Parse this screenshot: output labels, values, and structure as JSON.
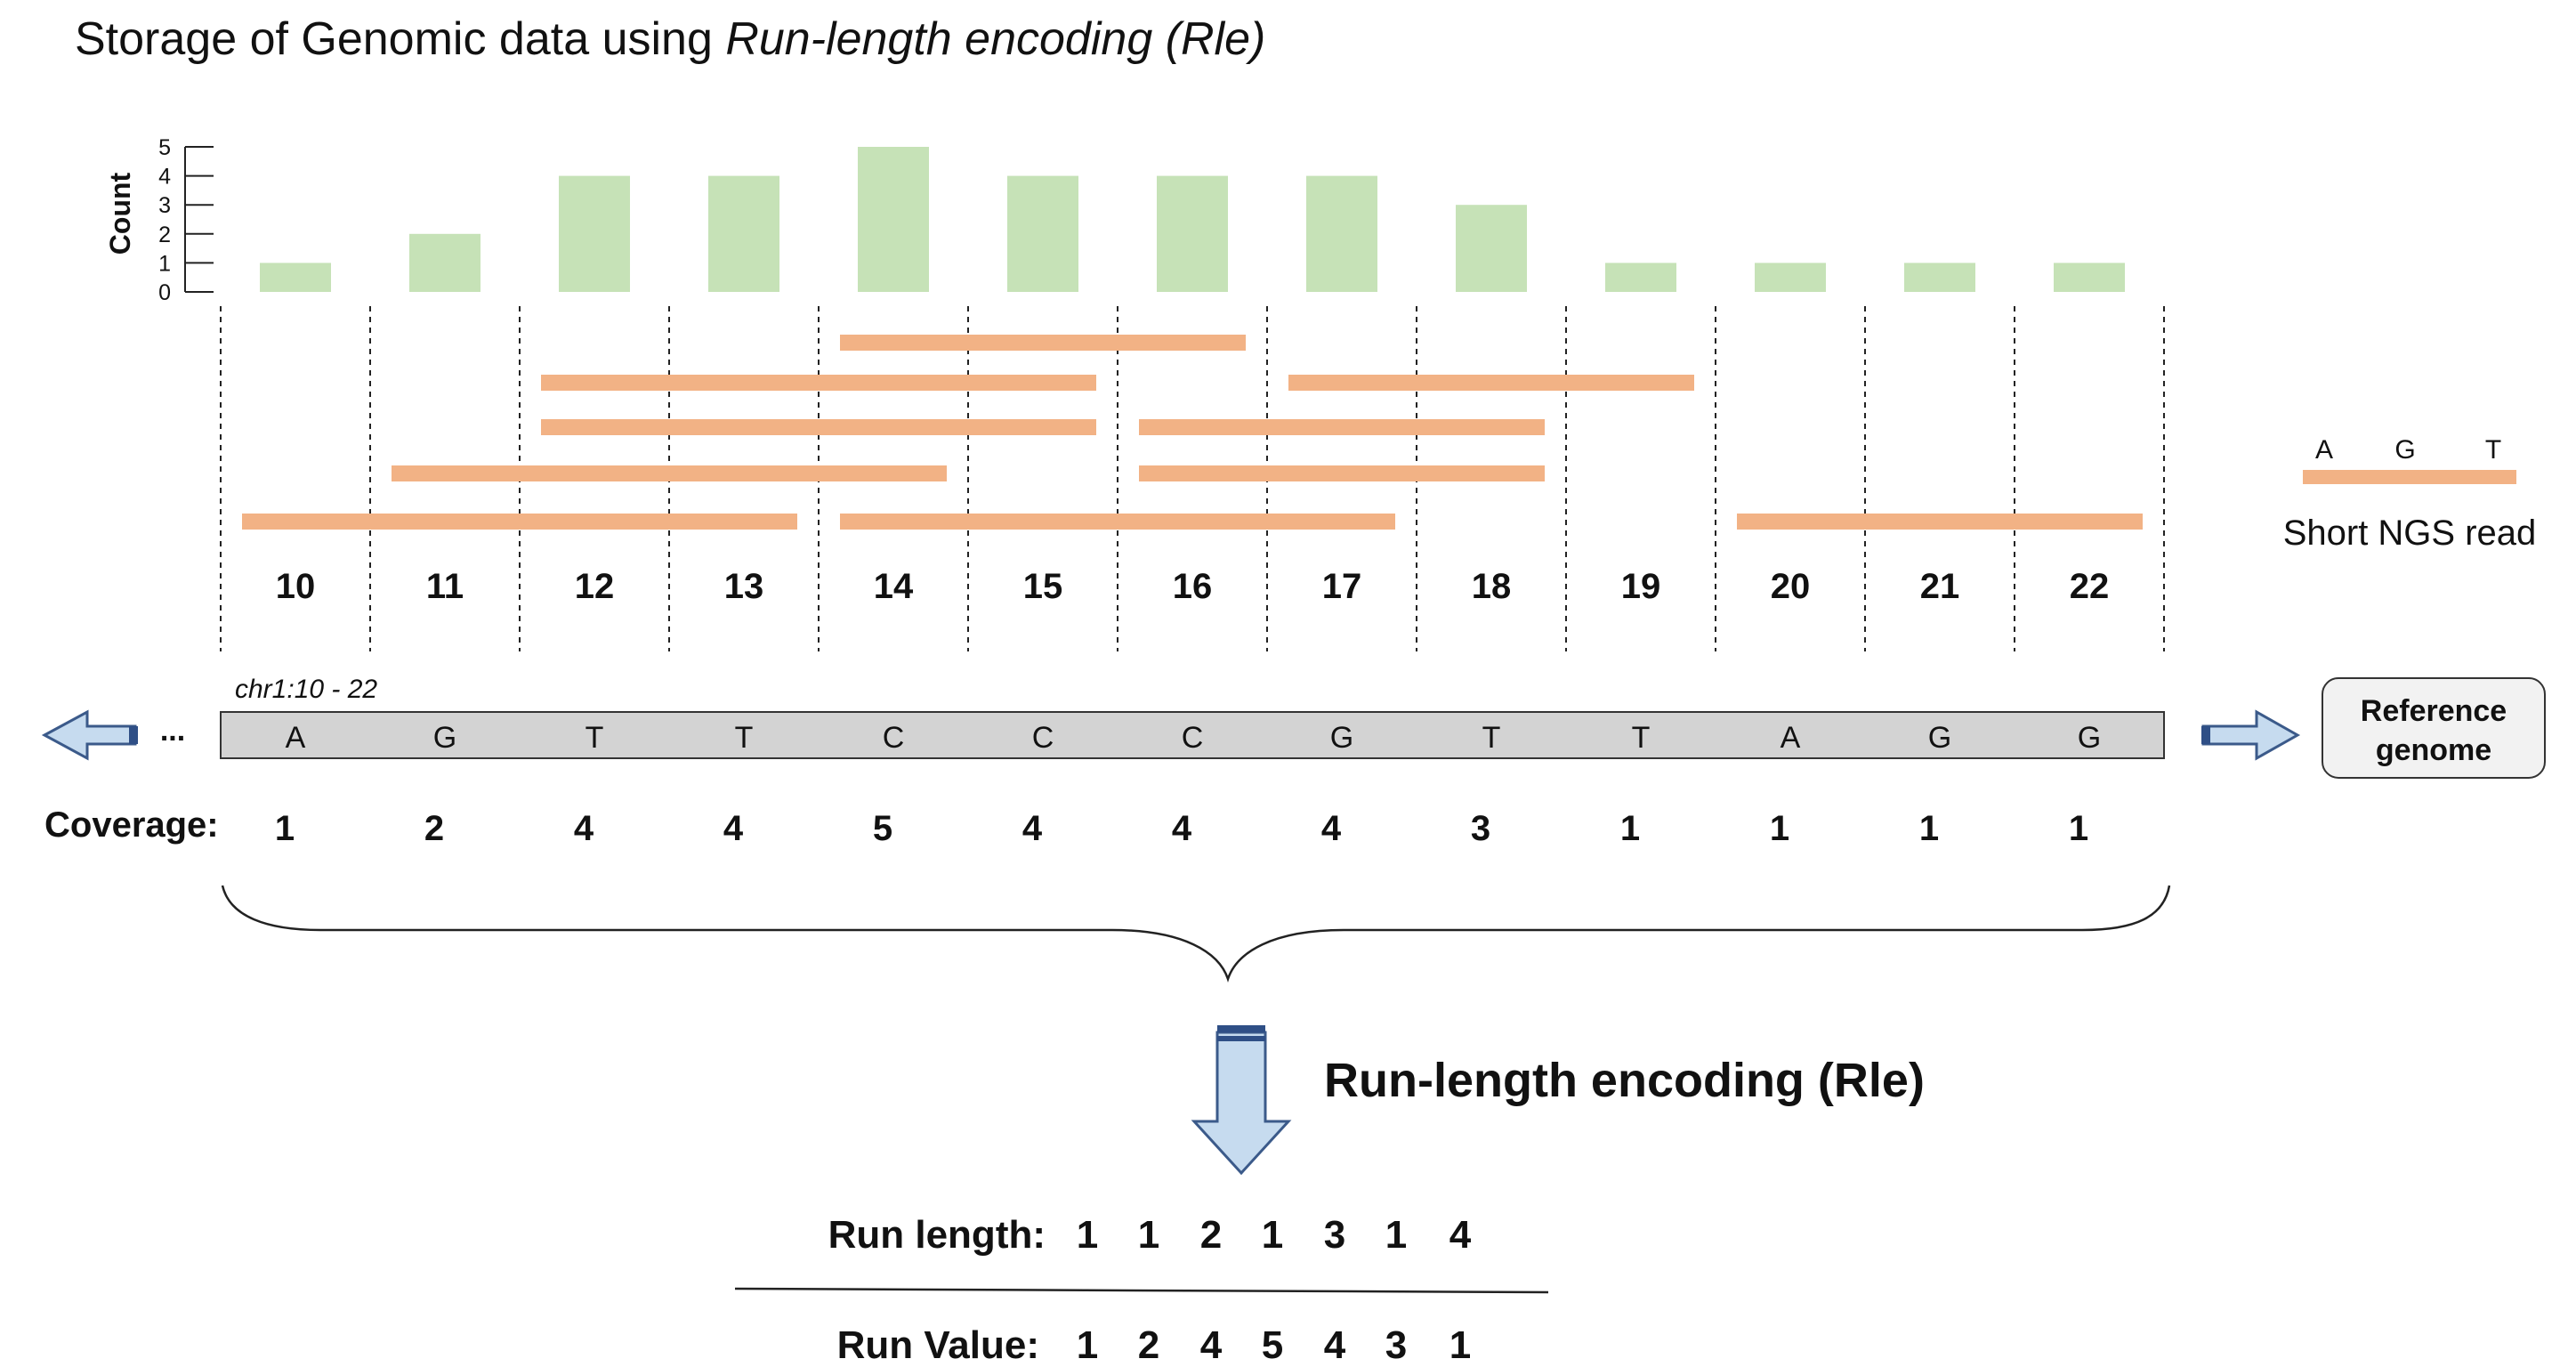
{
  "title": {
    "prefix": "Storage of Genomic data using ",
    "emphasis": "Run-length encoding (Rle)"
  },
  "chart_data": {
    "type": "bar",
    "ylabel": "Count",
    "ylim": [
      0,
      5
    ],
    "yticks": [
      "0",
      "1",
      "2",
      "3",
      "4",
      "5"
    ],
    "categories": [
      "10",
      "11",
      "12",
      "13",
      "14",
      "15",
      "16",
      "17",
      "18",
      "19",
      "20",
      "21",
      "22"
    ],
    "values": [
      1,
      2,
      4,
      4,
      5,
      4,
      4,
      4,
      3,
      1,
      1,
      1,
      1
    ]
  },
  "reads": [
    {
      "start": 10,
      "end": 13
    },
    {
      "start": 11,
      "end": 14
    },
    {
      "start": 12,
      "end": 15
    },
    {
      "start": 12,
      "end": 15
    },
    {
      "start": 14,
      "end": 17
    },
    {
      "start": 14,
      "end": 16
    },
    {
      "start": 16,
      "end": 18
    },
    {
      "start": 16,
      "end": 18
    },
    {
      "start": 17,
      "end": 19
    },
    {
      "start": 20,
      "end": 22
    }
  ],
  "positions": [
    "10",
    "11",
    "12",
    "13",
    "14",
    "15",
    "16",
    "17",
    "18",
    "19",
    "20",
    "21",
    "22"
  ],
  "region_label": "chr1:10 - 22",
  "bases": [
    "A",
    "G",
    "T",
    "T",
    "C",
    "C",
    "C",
    "G",
    "T",
    "T",
    "A",
    "G",
    "G"
  ],
  "ellipsis": "...",
  "coverage_label": "Coverage:",
  "coverage": [
    "1",
    "2",
    "4",
    "4",
    "5",
    "4",
    "4",
    "4",
    "3",
    "1",
    "1",
    "1",
    "1"
  ],
  "legend": {
    "bases": [
      "A",
      "G",
      "T"
    ],
    "label": "Short NGS read"
  },
  "reference_box": {
    "line1": "Reference",
    "line2": "genome"
  },
  "rle_label": "Run-length encoding (Rle)",
  "run_length_label": "Run length:",
  "run_lengths": [
    "1",
    "1",
    "2",
    "1",
    "3",
    "1",
    "4"
  ],
  "run_value_label": "Run Value:",
  "run_values": [
    "1",
    "2",
    "4",
    "5",
    "4",
    "3",
    "1"
  ],
  "colors": {
    "bar": "#c6e2b7",
    "read": "#f2b285",
    "reference_fill": "#d3d3d3",
    "arrow_fill": "#c6dbef",
    "arrow_stroke": "#3b5a8a",
    "arrow_cap": "#2f4f86"
  }
}
